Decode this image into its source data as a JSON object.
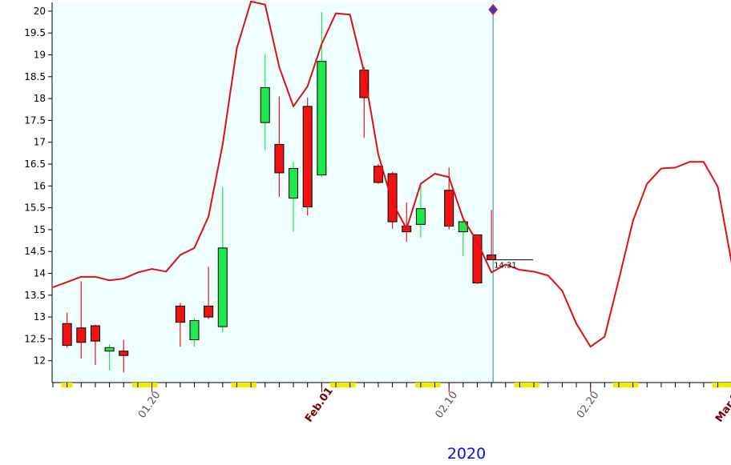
{
  "chart_data": {
    "type": "candlestick",
    "x_axis": {
      "labels": [
        {
          "text": "01.20",
          "slot": 7,
          "kind": "day"
        },
        {
          "text": "Feb.01",
          "slot": 19,
          "kind": "month"
        },
        {
          "text": "02.10",
          "slot": 28,
          "kind": "day"
        },
        {
          "text": "02.20",
          "slot": 38,
          "kind": "day"
        },
        {
          "text": "Mar.01",
          "slot": 48,
          "kind": "month"
        }
      ],
      "year_label": "2020"
    },
    "y_axis": {
      "min": 11.5,
      "max": 20.2,
      "ticks": [
        12,
        12.5,
        13,
        13.5,
        14,
        14.5,
        15,
        15.5,
        16,
        16.5,
        17,
        17.5,
        18,
        18.5,
        19,
        19.5,
        20
      ],
      "tick_labels": [
        "12",
        "12.5",
        "13",
        "13.5",
        "14",
        "14.5",
        "15",
        "15.5",
        "16",
        "16.5",
        "17",
        "17.5",
        "18",
        "18.5",
        "19",
        "19.5",
        "20"
      ]
    },
    "candles": [
      {
        "slot": 1,
        "open": 12.85,
        "high": 13.1,
        "low": 12.3,
        "close": 12.35
      },
      {
        "slot": 2,
        "open": 12.75,
        "high": 13.82,
        "low": 12.05,
        "close": 12.42
      },
      {
        "slot": 3,
        "open": 12.8,
        "high": 12.82,
        "low": 11.9,
        "close": 12.45
      },
      {
        "slot": 4,
        "open": 12.22,
        "high": 12.38,
        "low": 11.78,
        "close": 12.3
      },
      {
        "slot": 5,
        "open": 12.22,
        "high": 12.48,
        "low": 11.73,
        "close": 12.12
      },
      {
        "slot": 9,
        "open": 13.25,
        "high": 13.32,
        "low": 12.32,
        "close": 12.88
      },
      {
        "slot": 10,
        "open": 12.48,
        "high": 12.98,
        "low": 12.32,
        "close": 12.92
      },
      {
        "slot": 11,
        "open": 13.25,
        "high": 14.15,
        "low": 12.95,
        "close": 13.0
      },
      {
        "slot": 12,
        "open": 12.78,
        "high": 15.98,
        "low": 12.65,
        "close": 14.58
      },
      {
        "slot": 15,
        "open": 17.45,
        "high": 19.02,
        "low": 16.82,
        "close": 18.25
      },
      {
        "slot": 16,
        "open": 16.95,
        "high": 18.05,
        "low": 15.75,
        "close": 16.3
      },
      {
        "slot": 17,
        "open": 15.72,
        "high": 16.55,
        "low": 14.95,
        "close": 16.4
      },
      {
        "slot": 18,
        "open": 17.82,
        "high": 18.02,
        "low": 15.32,
        "close": 15.52
      },
      {
        "slot": 19,
        "open": 16.25,
        "high": 19.98,
        "low": 16.2,
        "close": 18.85
      },
      {
        "slot": 22,
        "open": 18.65,
        "high": 18.72,
        "low": 17.1,
        "close": 18.02
      },
      {
        "slot": 23,
        "open": 16.45,
        "high": 16.5,
        "low": 16.05,
        "close": 16.08
      },
      {
        "slot": 24,
        "open": 16.28,
        "high": 16.32,
        "low": 15.02,
        "close": 15.18
      },
      {
        "slot": 25,
        "open": 15.08,
        "high": 15.62,
        "low": 14.72,
        "close": 14.95
      },
      {
        "slot": 26,
        "open": 15.12,
        "high": 16.0,
        "low": 14.82,
        "close": 15.48
      },
      {
        "slot": 28,
        "open": 15.9,
        "high": 16.42,
        "low": 15.0,
        "close": 15.08
      },
      {
        "slot": 29,
        "open": 14.95,
        "high": 15.22,
        "low": 14.4,
        "close": 15.18
      },
      {
        "slot": 30,
        "open": 14.88,
        "high": 14.9,
        "low": 13.75,
        "close": 13.78
      },
      {
        "slot": 31,
        "open": 14.42,
        "high": 15.45,
        "low": 14.32,
        "close": 14.31
      }
    ],
    "last_price_label": "14.31",
    "red_line": {
      "x": [
        0,
        1,
        2,
        3,
        4,
        5,
        6,
        7,
        8,
        9,
        10,
        11,
        12,
        13,
        14,
        15,
        16,
        17,
        18,
        19,
        20,
        21,
        22,
        23,
        24,
        25,
        26,
        27,
        28,
        29,
        30,
        31,
        32,
        33,
        34,
        35,
        36,
        37,
        38,
        39,
        40,
        41,
        42,
        43,
        44,
        45,
        46,
        47,
        48,
        49
      ],
      "y": [
        13.68,
        13.8,
        13.92,
        13.92,
        13.84,
        13.88,
        14.02,
        14.1,
        14.04,
        14.42,
        14.58,
        15.3,
        16.95,
        19.15,
        20.22,
        20.15,
        18.72,
        17.82,
        18.28,
        19.25,
        19.95,
        19.92,
        18.6,
        16.72,
        15.62,
        15.02,
        16.05,
        16.28,
        16.2,
        15.25,
        14.72,
        14.02,
        14.2,
        14.08,
        14.04,
        13.95,
        13.6,
        12.85,
        12.32,
        12.55,
        13.85,
        15.2,
        16.05,
        16.4,
        16.42,
        16.55,
        16.55,
        15.98,
        14.2,
        12.8
      ]
    },
    "cursor": {
      "slot": 31
    },
    "history_end_slot": 31,
    "colors": {
      "up": "#1ee84a",
      "down": "#f21212",
      "line": "#e01010",
      "history_bg": "#effefe",
      "cursor": "#2a7fa8",
      "marker_fill": "#1a3fd0",
      "marker_edge": "#e02020",
      "week_bar": "#f2ea00"
    },
    "week_bars": [
      [
        1,
        1
      ],
      [
        6,
        7
      ],
      [
        13,
        14
      ],
      [
        20,
        21
      ],
      [
        26,
        27
      ],
      [
        33,
        34
      ],
      [
        40,
        41
      ],
      [
        47,
        48
      ]
    ]
  }
}
